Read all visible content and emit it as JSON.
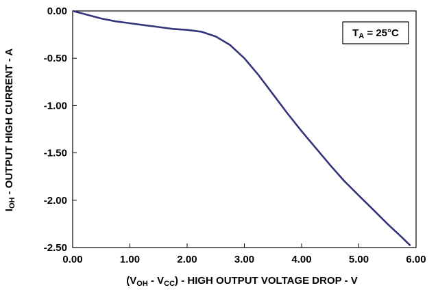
{
  "chart_data": {
    "type": "line",
    "xlabel": {
      "pre": "(V",
      "sub1": "OH",
      "mid": " - V",
      "sub2": "CC",
      "post": ") - HIGH OUTPUT VOLTAGE DROP - V"
    },
    "ylabel": {
      "pre": "I",
      "sub": "OH",
      "post": " - OUTPUT HIGH CURRENT - A"
    },
    "xlim": [
      0,
      6
    ],
    "ylim": [
      -2.5,
      0
    ],
    "xticks": [
      0,
      1,
      2,
      3,
      4,
      5,
      6
    ],
    "xtick_labels": [
      "0.00",
      "1.00",
      "2.00",
      "3.00",
      "4.00",
      "5.00",
      "6.00"
    ],
    "yticks": [
      0,
      -0.5,
      -1,
      -1.5,
      -2,
      -2.5
    ],
    "ytick_labels": [
      "0.00",
      "-0.50",
      "-1.00",
      "-1.50",
      "-2.00",
      "-2.50"
    ],
    "grid": false,
    "annotation": {
      "pre": "T",
      "sub": "A",
      "post": " = 25°C",
      "position": "top-right"
    },
    "line_color": "#33337a",
    "series": [
      {
        "x": [
          0.0,
          0.25,
          0.5,
          0.75,
          1.0,
          1.25,
          1.5,
          1.75,
          2.0,
          2.25,
          2.5,
          2.75,
          3.0,
          3.25,
          3.5,
          3.75,
          4.0,
          4.25,
          4.5,
          4.75,
          5.0,
          5.25,
          5.5,
          5.75,
          5.9
        ],
        "y": [
          0.0,
          -0.04,
          -0.08,
          -0.11,
          -0.13,
          -0.15,
          -0.17,
          -0.19,
          -0.2,
          -0.22,
          -0.27,
          -0.36,
          -0.5,
          -0.68,
          -0.88,
          -1.08,
          -1.27,
          -1.45,
          -1.63,
          -1.8,
          -1.95,
          -2.1,
          -2.25,
          -2.39,
          -2.48
        ]
      }
    ]
  }
}
